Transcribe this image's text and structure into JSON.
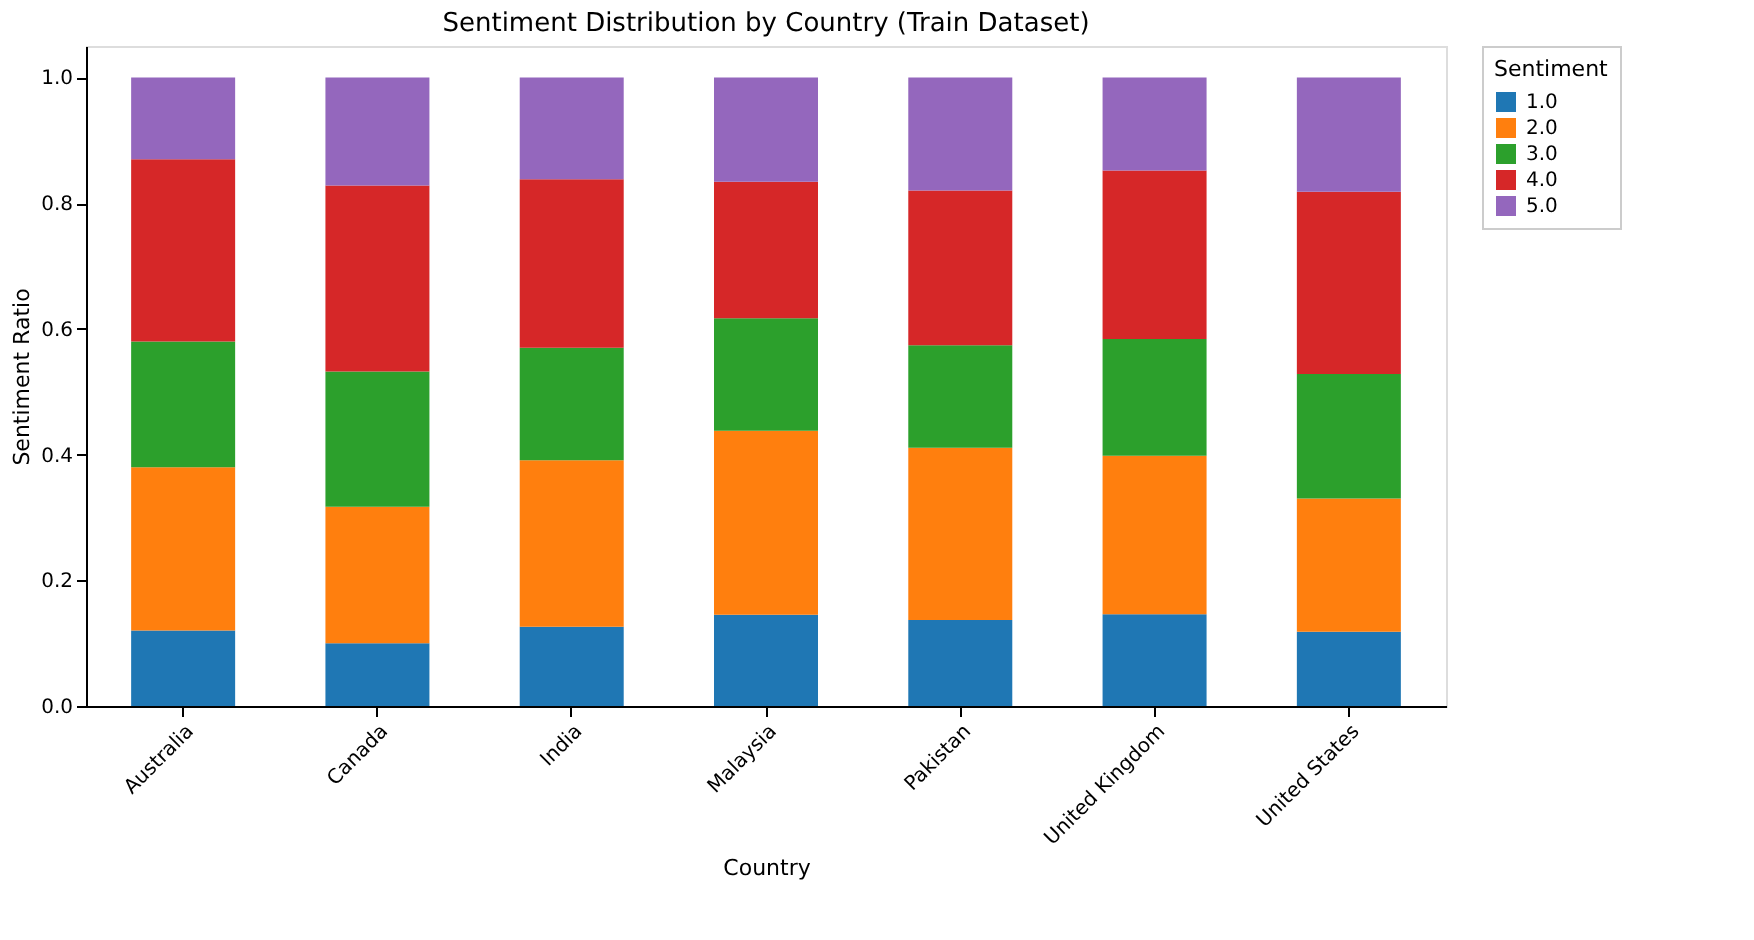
{
  "chart_data": {
    "type": "bar",
    "stacked": true,
    "title": "Sentiment Distribution by Country (Train Dataset)",
    "xlabel": "Country",
    "ylabel": "Sentiment Ratio",
    "legend_title": "Sentiment",
    "legend": "top right",
    "grid": false,
    "categories": [
      "Australia",
      "Canada",
      "India",
      "Malaysia",
      "Pakistan",
      "United Kingdom",
      "United States"
    ],
    "ylim": [
      0,
      1.05
    ],
    "yticks": [
      {
        "value": 0,
        "label": "0.0"
      },
      {
        "value": 0.2,
        "label": "0.2"
      },
      {
        "value": 0.4,
        "label": "0.4"
      },
      {
        "value": 0.6,
        "label": "0.6"
      },
      {
        "value": 0.8,
        "label": "0.8"
      },
      {
        "value": 1.0,
        "label": "1.0"
      }
    ],
    "series": [
      {
        "name": "1.0",
        "color": "#1f77b4",
        "values": [
          0.12,
          0.1,
          0.126,
          0.145,
          0.137,
          0.146,
          0.118
        ]
      },
      {
        "name": "2.0",
        "color": "#ff7f0e",
        "values": [
          0.26,
          0.217,
          0.265,
          0.293,
          0.274,
          0.252,
          0.212
        ]
      },
      {
        "name": "3.0",
        "color": "#2ca02c",
        "values": [
          0.2,
          0.215,
          0.179,
          0.179,
          0.163,
          0.186,
          0.198
        ]
      },
      {
        "name": "4.0",
        "color": "#d62728",
        "values": [
          0.29,
          0.296,
          0.268,
          0.217,
          0.246,
          0.268,
          0.29
        ]
      },
      {
        "name": "5.0",
        "color": "#9467bd",
        "values": [
          0.13,
          0.172,
          0.162,
          0.166,
          0.18,
          0.148,
          0.182
        ]
      }
    ]
  }
}
